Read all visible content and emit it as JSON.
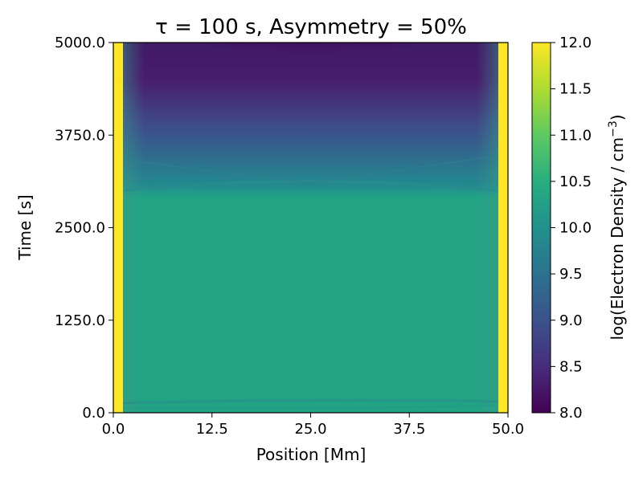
{
  "chart_data": {
    "type": "heatmap",
    "title": "τ = 100 s, Asymmetry = 50%",
    "xlabel": "Position [Mm]",
    "ylabel": "Time [s]",
    "xlim": [
      0.0,
      50.0
    ],
    "ylim": [
      0.0,
      5000.0
    ],
    "x_ticks": [
      0.0,
      12.5,
      25.0,
      37.5,
      50.0
    ],
    "x_tick_labels": [
      "0.0",
      "12.5",
      "25.0",
      "37.5",
      "50.0"
    ],
    "y_ticks": [
      0.0,
      1250.0,
      2500.0,
      3750.0,
      5000.0
    ],
    "y_tick_labels": [
      "0.0",
      "1250.0",
      "2500.0",
      "3750.0",
      "5000.0"
    ],
    "colorscale": "viridis",
    "colorbar": {
      "label": "log(Electron Density / cm^-3)",
      "label_main": "log(Electron Density / cm",
      "label_sup": "−3",
      "label_close": ")",
      "range": [
        8.0,
        12.0
      ],
      "ticks": [
        8.0,
        8.5,
        9.0,
        9.5,
        10.0,
        10.5,
        11.0,
        11.5,
        12.0
      ],
      "tick_labels": [
        "8.0",
        "8.5",
        "9.0",
        "9.5",
        "10.0",
        "10.5",
        "11.0",
        "11.5",
        "12.0"
      ]
    },
    "features": {
      "footpoint_density": 12.0,
      "footpoint_width_mm": 1.0,
      "loop_density_before_drain": 10.4,
      "drain_onset_time_s": 3050,
      "minimum_density_top": 8.0
    }
  }
}
